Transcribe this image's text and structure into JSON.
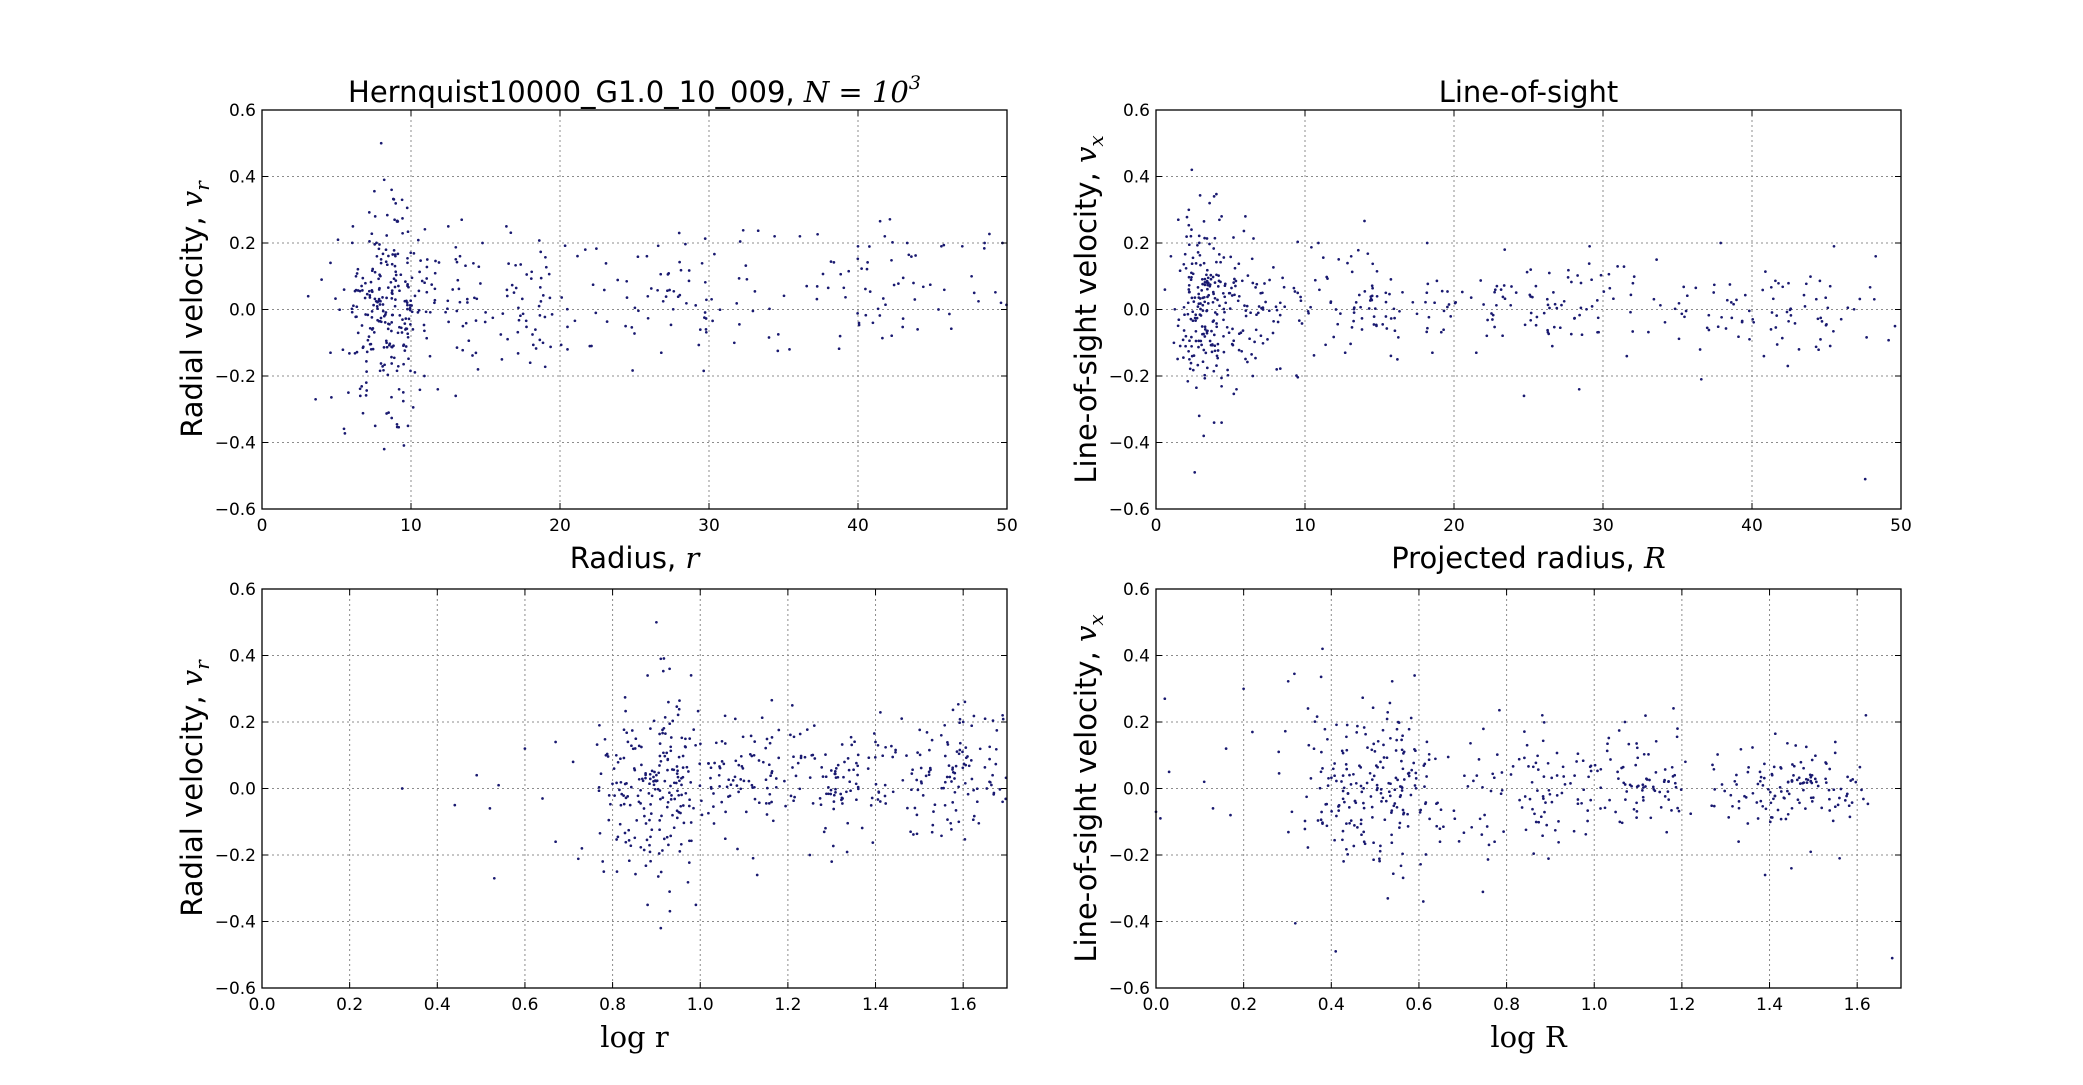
{
  "chart_data": [
    {
      "type": "scatter",
      "title": "Hernquist10000_G1.0_10_009, ",
      "title_math": "N = 10",
      "title_sup": "3",
      "xlabel": "Radius, ",
      "xlabel_math": "r",
      "ylabel": "Radial velocity, ",
      "ylabel_math": "v",
      "ylabel_sub": "r",
      "xlim": [
        0,
        50
      ],
      "ylim": [
        -0.6,
        0.6
      ],
      "xticks": [
        0,
        10,
        20,
        30,
        40,
        50
      ],
      "xticklabels": [
        "0",
        "10",
        "20",
        "30",
        "40",
        "50"
      ],
      "yticks": [
        -0.6,
        -0.4,
        -0.2,
        0.0,
        0.2,
        0.4,
        0.6
      ],
      "yticklabels": [
        "−0.6",
        "−0.4",
        "−0.2",
        "0.0",
        "0.2",
        "0.4",
        "0.6"
      ],
      "grid": true,
      "marker_color": "#191970",
      "points": [
        [
          8.0,
          0.5
        ],
        [
          8.2,
          0.39
        ],
        [
          8.7,
          0.36
        ],
        [
          9.4,
          0.33
        ],
        [
          7.6,
          0.28
        ],
        [
          8.9,
          0.27
        ],
        [
          6.1,
          0.25
        ],
        [
          3.6,
          -0.27
        ],
        [
          8.2,
          -0.42
        ],
        [
          7.6,
          -0.35
        ],
        [
          9.8,
          -0.35
        ],
        [
          8.5,
          -0.31
        ],
        [
          16.4,
          0.25
        ],
        [
          12.5,
          0.25
        ],
        [
          13.4,
          0.27
        ],
        [
          14.8,
          0.2
        ],
        [
          21.7,
          0.18
        ],
        [
          28.0,
          0.23
        ],
        [
          34.4,
          0.22
        ],
        [
          36.1,
          0.22
        ],
        [
          40.0,
          0.19
        ],
        [
          41.8,
          0.22
        ],
        [
          43.3,
          0.2
        ],
        [
          45.6,
          0.19
        ],
        [
          47.0,
          0.19
        ],
        [
          48.5,
          0.2
        ],
        [
          49.7,
          0.2
        ],
        [
          47.8,
          0.05
        ],
        [
          49.6,
          0.02
        ],
        [
          45.4,
          0.0
        ],
        [
          44.0,
          -0.06
        ],
        [
          41.0,
          -0.04
        ],
        [
          38.8,
          -0.08
        ],
        [
          35.4,
          -0.12
        ],
        [
          31.7,
          -0.1
        ],
        [
          29.8,
          -0.06
        ],
        [
          26.8,
          -0.13
        ],
        [
          24.4,
          -0.05
        ],
        [
          22.0,
          -0.11
        ],
        [
          20.5,
          -0.12
        ],
        [
          18.0,
          -0.16
        ],
        [
          16.1,
          -0.15
        ],
        [
          14.5,
          -0.18
        ],
        [
          13.0,
          -0.26
        ],
        [
          11.8,
          -0.24
        ],
        [
          10.9,
          -0.2
        ],
        [
          6.6,
          -0.26
        ],
        [
          5.8,
          -0.25
        ],
        [
          7.0,
          -0.22
        ],
        [
          9.2,
          -0.24
        ],
        [
          4.6,
          -0.13
        ],
        [
          3.1,
          0.04
        ],
        [
          4.0,
          0.09
        ],
        [
          4.6,
          0.14
        ],
        [
          5.1,
          0.21
        ]
      ],
      "cloud": [
        {
          "cx": 8.3,
          "cy": 0.0,
          "sx": 1.4,
          "sy": 0.13,
          "n": 230,
          "xmin": 2.5,
          "xmax": 13.5
        },
        {
          "cx": 12.0,
          "cy": 0.02,
          "sx": 1.6,
          "sy": 0.1,
          "n": 50,
          "xmin": 9.5,
          "xmax": 16.0
        },
        {
          "cx": 18.5,
          "cy": 0.03,
          "sx": 2.4,
          "sy": 0.1,
          "n": 60,
          "xmin": 14.0,
          "xmax": 24.0
        },
        {
          "cx": 28.0,
          "cy": 0.05,
          "sx": 3.5,
          "sy": 0.09,
          "n": 65,
          "xmin": 22.0,
          "xmax": 35.0
        },
        {
          "cx": 42.0,
          "cy": 0.07,
          "sx": 4.5,
          "sy": 0.09,
          "n": 60,
          "xmin": 33.0,
          "xmax": 50.0
        }
      ]
    },
    {
      "type": "scatter",
      "title": "Line-of-sight",
      "xlabel": "Projected radius, ",
      "xlabel_math": "R",
      "ylabel": "Line-of-sight velocity, ",
      "ylabel_math": "v",
      "ylabel_sub": "x",
      "xlim": [
        0,
        50
      ],
      "ylim": [
        -0.6,
        0.6
      ],
      "xticks": [
        0,
        10,
        20,
        30,
        40,
        50
      ],
      "xticklabels": [
        "0",
        "10",
        "20",
        "30",
        "40",
        "50"
      ],
      "yticks": [
        -0.6,
        -0.4,
        -0.2,
        0.0,
        0.2,
        0.4,
        0.6
      ],
      "yticklabels": [
        "−0.6",
        "−0.4",
        "−0.2",
        "0.0",
        "0.2",
        "0.4",
        "0.6"
      ],
      "grid": true,
      "marker_color": "#191970",
      "points": [
        [
          2.4,
          0.42
        ],
        [
          3.9,
          0.34
        ],
        [
          3.6,
          0.32
        ],
        [
          2.2,
          0.3
        ],
        [
          4.4,
          0.28
        ],
        [
          6.0,
          0.28
        ],
        [
          1.5,
          0.27
        ],
        [
          2.6,
          -0.49
        ],
        [
          3.2,
          -0.38
        ],
        [
          3.9,
          -0.34
        ],
        [
          4.4,
          -0.34
        ],
        [
          2.9,
          -0.32
        ],
        [
          47.6,
          -0.51
        ],
        [
          36.6,
          -0.21
        ],
        [
          28.4,
          -0.24
        ],
        [
          24.7,
          -0.26
        ],
        [
          45.5,
          0.19
        ],
        [
          48.3,
          0.16
        ],
        [
          37.9,
          0.2
        ],
        [
          33.6,
          0.15
        ],
        [
          29.1,
          0.19
        ],
        [
          23.4,
          0.18
        ],
        [
          18.2,
          0.2
        ],
        [
          13.1,
          0.16
        ],
        [
          10.9,
          0.2
        ],
        [
          40.8,
          -0.14
        ],
        [
          42.4,
          -0.17
        ],
        [
          44.6,
          -0.09
        ],
        [
          49.6,
          -0.05
        ],
        [
          31.6,
          -0.14
        ],
        [
          26.6,
          -0.11
        ],
        [
          21.5,
          -0.13
        ],
        [
          16.2,
          -0.15
        ],
        [
          12.7,
          -0.13
        ],
        [
          8.1,
          -0.18
        ],
        [
          6.5,
          -0.2
        ],
        [
          5.4,
          -0.24
        ],
        [
          1.2,
          -0.1
        ],
        [
          0.6,
          0.06
        ],
        [
          1.0,
          0.16
        ]
      ],
      "cloud": [
        {
          "cx": 3.4,
          "cy": 0.0,
          "sx": 1.0,
          "sy": 0.13,
          "n": 200,
          "xmin": 1.2,
          "xmax": 7.5
        },
        {
          "cx": 7.0,
          "cy": 0.01,
          "sx": 1.5,
          "sy": 0.1,
          "n": 70,
          "xmin": 4.5,
          "xmax": 11.0
        },
        {
          "cx": 14.0,
          "cy": 0.01,
          "sx": 2.8,
          "sy": 0.08,
          "n": 80,
          "xmin": 9.5,
          "xmax": 20.0
        },
        {
          "cx": 26.0,
          "cy": 0.01,
          "sx": 4.0,
          "sy": 0.06,
          "n": 90,
          "xmin": 18.0,
          "xmax": 35.0
        },
        {
          "cx": 42.0,
          "cy": 0.0,
          "sx": 4.5,
          "sy": 0.06,
          "n": 80,
          "xmin": 33.0,
          "xmax": 50.0
        }
      ]
    },
    {
      "type": "scatter",
      "xlabel": "log r",
      "ylabel": "Radial velocity, ",
      "ylabel_math": "v",
      "ylabel_sub": "r",
      "xlim": [
        0.0,
        1.7
      ],
      "ylim": [
        -0.6,
        0.6
      ],
      "xticks": [
        0.0,
        0.2,
        0.4,
        0.6,
        0.8,
        1.0,
        1.2,
        1.4,
        1.6
      ],
      "xticklabels": [
        "0.0",
        "0.2",
        "0.4",
        "0.6",
        "0.8",
        "1.0",
        "1.2",
        "1.4",
        "1.6"
      ],
      "yticks": [
        -0.6,
        -0.4,
        -0.2,
        0.0,
        0.2,
        0.4,
        0.6
      ],
      "yticklabels": [
        "−0.6",
        "−0.4",
        "−0.2",
        "0.0",
        "0.2",
        "0.4",
        "0.6"
      ],
      "grid": true,
      "marker_color": "#191970",
      "points": [
        [
          0.32,
          0.0
        ],
        [
          0.44,
          -0.05
        ],
        [
          0.49,
          0.04
        ],
        [
          0.52,
          -0.06
        ],
        [
          0.54,
          0.01
        ],
        [
          0.53,
          -0.27
        ],
        [
          0.6,
          0.12
        ],
        [
          0.64,
          -0.03
        ],
        [
          0.67,
          0.14
        ],
        [
          0.67,
          -0.16
        ],
        [
          0.71,
          0.08
        ],
        [
          0.73,
          -0.18
        ],
        [
          0.77,
          0.19
        ],
        [
          0.78,
          -0.25
        ],
        [
          0.81,
          -0.25
        ],
        [
          0.9,
          0.5
        ],
        [
          0.91,
          0.39
        ],
        [
          0.93,
          0.36
        ],
        [
          0.88,
          0.34
        ],
        [
          0.91,
          -0.42
        ],
        [
          0.88,
          -0.35
        ],
        [
          0.99,
          -0.35
        ],
        [
          0.93,
          -0.31
        ],
        [
          1.21,
          0.25
        ],
        [
          1.13,
          -0.26
        ],
        [
          1.25,
          -0.2
        ],
        [
          1.6,
          0.2
        ],
        [
          1.65,
          0.21
        ],
        [
          1.69,
          0.22
        ],
        [
          1.55,
          0.16
        ],
        [
          1.4,
          0.14
        ],
        [
          1.3,
          -0.22
        ],
        [
          1.48,
          -0.13
        ],
        [
          1.59,
          -0.1
        ],
        [
          1.66,
          0.02
        ],
        [
          1.69,
          -0.04
        ]
      ],
      "cloud": [
        {
          "cx": 0.9,
          "cy": 0.0,
          "sx": 0.07,
          "sy": 0.13,
          "n": 230,
          "xmin": 0.7,
          "xmax": 1.1
        },
        {
          "cx": 1.12,
          "cy": 0.02,
          "sx": 0.06,
          "sy": 0.1,
          "n": 70,
          "xmin": 0.98,
          "xmax": 1.25
        },
        {
          "cx": 1.32,
          "cy": 0.03,
          "sx": 0.07,
          "sy": 0.1,
          "n": 90,
          "xmin": 1.18,
          "xmax": 1.45
        },
        {
          "cx": 1.57,
          "cy": 0.06,
          "sx": 0.08,
          "sy": 0.09,
          "n": 110,
          "xmin": 1.42,
          "xmax": 1.7
        }
      ]
    },
    {
      "type": "scatter",
      "xlabel": "log R",
      "ylabel": "Line-of-sight velocity, ",
      "ylabel_math": "v",
      "ylabel_sub": "x",
      "xlim": [
        0.0,
        1.7
      ],
      "ylim": [
        -0.6,
        0.6
      ],
      "xticks": [
        0.0,
        0.2,
        0.4,
        0.6,
        0.8,
        1.0,
        1.2,
        1.4,
        1.6
      ],
      "xticklabels": [
        "0.0",
        "0.2",
        "0.4",
        "0.6",
        "0.8",
        "1.0",
        "1.2",
        "1.4",
        "1.6"
      ],
      "yticks": [
        -0.6,
        -0.4,
        -0.2,
        0.0,
        0.2,
        0.4,
        0.6
      ],
      "yticklabels": [
        "−0.6",
        "−0.4",
        "−0.2",
        "0.0",
        "0.2",
        "0.4",
        "0.6"
      ],
      "grid": true,
      "marker_color": "#191970",
      "points": [
        [
          0.02,
          0.27
        ],
        [
          0.0,
          -0.07
        ],
        [
          0.01,
          -0.09
        ],
        [
          0.03,
          0.05
        ],
        [
          0.11,
          0.02
        ],
        [
          0.13,
          -0.06
        ],
        [
          0.16,
          0.12
        ],
        [
          0.17,
          -0.08
        ],
        [
          0.2,
          0.3
        ],
        [
          0.22,
          0.17
        ],
        [
          0.38,
          0.42
        ],
        [
          0.41,
          -0.49
        ],
        [
          0.59,
          0.34
        ],
        [
          0.61,
          -0.34
        ],
        [
          1.68,
          -0.51
        ],
        [
          1.56,
          -0.21
        ],
        [
          1.45,
          -0.24
        ],
        [
          1.39,
          -0.26
        ],
        [
          1.62,
          0.22
        ],
        [
          1.55,
          0.14
        ],
        [
          1.19,
          0.18
        ],
        [
          1.07,
          0.2
        ],
        [
          0.31,
          -0.07
        ],
        [
          0.28,
          0.11
        ]
      ],
      "cloud": [
        {
          "cx": 0.5,
          "cy": 0.0,
          "sx": 0.1,
          "sy": 0.13,
          "n": 230,
          "xmin": 0.28,
          "xmax": 0.8
        },
        {
          "cx": 0.85,
          "cy": 0.01,
          "sx": 0.08,
          "sy": 0.1,
          "n": 80,
          "xmin": 0.7,
          "xmax": 1.0
        },
        {
          "cx": 1.12,
          "cy": 0.01,
          "sx": 0.08,
          "sy": 0.08,
          "n": 90,
          "xmin": 0.95,
          "xmax": 1.3
        },
        {
          "cx": 1.45,
          "cy": 0.0,
          "sx": 0.1,
          "sy": 0.06,
          "n": 130,
          "xmin": 1.25,
          "xmax": 1.7
        }
      ]
    }
  ]
}
